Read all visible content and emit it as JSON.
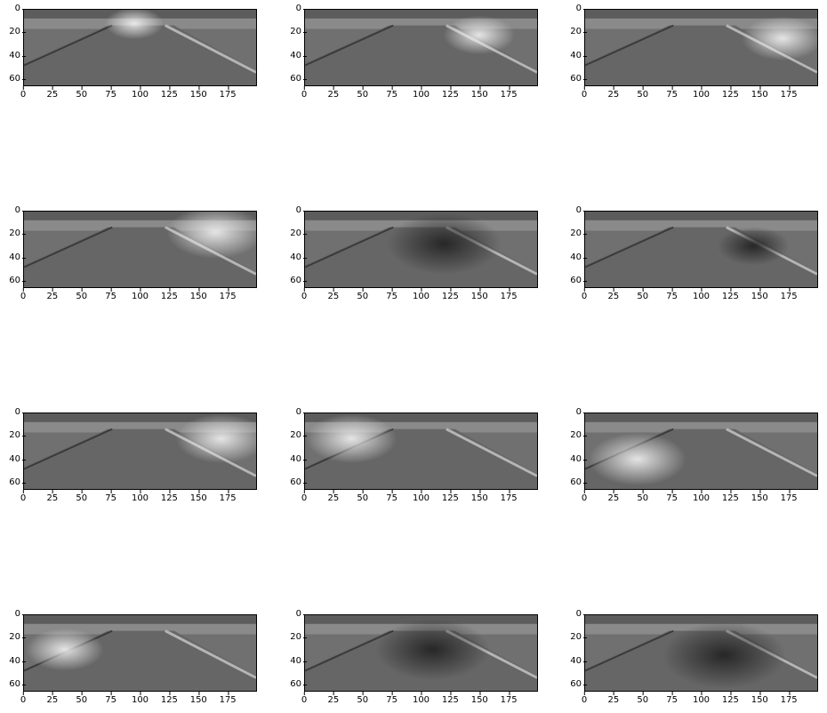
{
  "figure": {
    "x_ticks": [
      "0",
      "25",
      "50",
      "75",
      "100",
      "125",
      "150",
      "175"
    ],
    "y_ticks": [
      "0",
      "20",
      "40",
      "60"
    ],
    "x_range": [
      0,
      200
    ],
    "y_range": [
      0,
      66
    ],
    "colormap": "gray",
    "panels": [
      {
        "highlight": {
          "x": 95,
          "y": 12,
          "r": 18,
          "tone": "light"
        }
      },
      {
        "highlight": {
          "x": 150,
          "y": 22,
          "r": 22,
          "tone": "light"
        }
      },
      {
        "highlight": {
          "x": 170,
          "y": 25,
          "r": 25,
          "tone": "light"
        }
      },
      {
        "highlight": {
          "x": 165,
          "y": 18,
          "r": 30,
          "tone": "light"
        }
      },
      {
        "highlight": {
          "x": 120,
          "y": 28,
          "r": 35,
          "tone": "dark"
        }
      },
      {
        "highlight": {
          "x": 145,
          "y": 30,
          "r": 22,
          "tone": "dark"
        }
      },
      {
        "highlight": {
          "x": 170,
          "y": 22,
          "r": 28,
          "tone": "light"
        }
      },
      {
        "highlight": {
          "x": 40,
          "y": 22,
          "r": 28,
          "tone": "light"
        }
      },
      {
        "highlight": {
          "x": 45,
          "y": 40,
          "r": 30,
          "tone": "light"
        }
      },
      {
        "highlight": {
          "x": 35,
          "y": 30,
          "r": 24,
          "tone": "light"
        }
      },
      {
        "highlight": {
          "x": 110,
          "y": 30,
          "r": 35,
          "tone": "dark"
        }
      },
      {
        "highlight": {
          "x": 120,
          "y": 35,
          "r": 38,
          "tone": "dark"
        }
      }
    ]
  }
}
